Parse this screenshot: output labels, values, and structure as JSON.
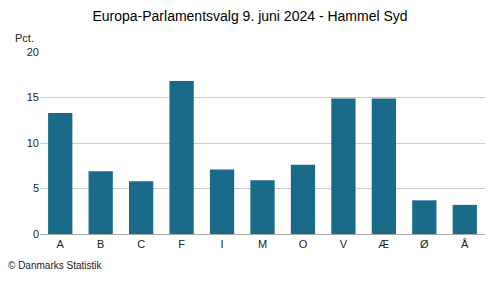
{
  "chart_data": {
    "type": "bar",
    "title": "Europa-Parlamentsvalg 9. juni 2024 - Hammel Syd",
    "categories": [
      "A",
      "B",
      "C",
      "F",
      "I",
      "M",
      "O",
      "V",
      "Æ",
      "Ø",
      "Å"
    ],
    "values": [
      13.3,
      6.9,
      5.8,
      16.8,
      7.1,
      5.9,
      7.6,
      14.9,
      14.9,
      3.7,
      3.2
    ],
    "color": "#1a6b8a",
    "ylabel": "Pct.",
    "annotations": [
      "© Danmarks Statistik"
    ],
    "ylim": [
      0,
      20
    ],
    "yticks": [
      0,
      5,
      10,
      15,
      20
    ],
    "grid": true
  }
}
